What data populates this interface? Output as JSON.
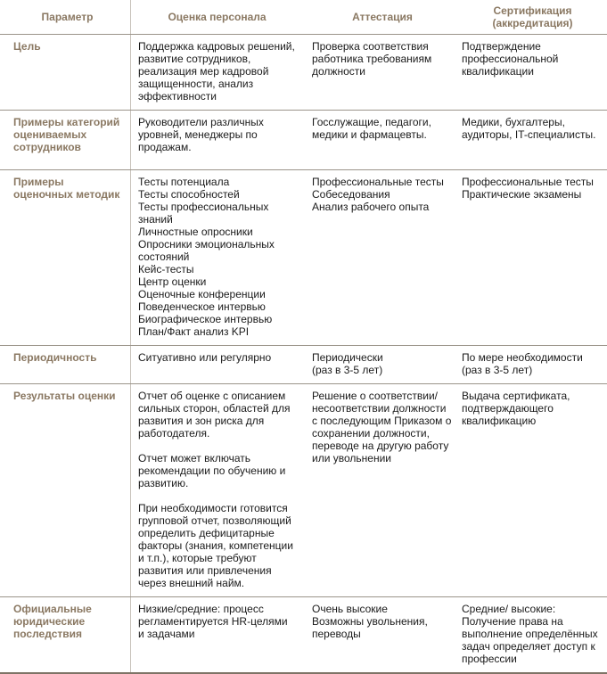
{
  "colors": {
    "label_brown": "#8a7862",
    "body_text": "#1a1a1a",
    "row_separator": "#9b948a",
    "column_divider": "#c8c3bb",
    "background": "#ffffff"
  },
  "table": {
    "headers": [
      "Параметр",
      "Оценка персонала",
      "Аттестация",
      "Сертификация\n(аккредитация)"
    ],
    "rows": [
      {
        "param": "Цель",
        "assessment": "Поддержка кадровых решений, развитие сотрудников, реализация мер кадровой защищенности, анализ эффективности",
        "attestation": "Проверка соответствия работника требованиям должности",
        "certification": "Подтверждение профессиональной квалификации"
      },
      {
        "param": "Примеры категорий оцениваемых сотрудников",
        "assessment": "Руководители различных уровней, менеджеры по продажам.",
        "attestation": "Госслужащие, педагоги, медики и фармацевты.",
        "certification": "Медики, бухгалтеры, аудиторы, IT-специалисты."
      },
      {
        "param": "Примеры оценочных методик",
        "assessment": "Тесты потенциала\nТесты способностей\nТесты профессиональных знаний\nЛичностные опросники\nОпросники эмоциональных состояний\nКейс-тесты\nЦентр оценки\nОценочные конференции\nПоведенческое интервью\nБиографическое интервью\nПлан/Факт анализ KPI",
        "attestation": "Профессиональные тесты\nСобеседования\nАнализ рабочего опыта",
        "certification": "Профессиональные тесты\nПрактические экзамены"
      },
      {
        "param": "Периодичность",
        "assessment": "Ситуативно или регулярно",
        "attestation": "Периодически\n(раз в 3-5 лет)",
        "certification": "По мере необходимости\n(раз в 3-5 лет)"
      },
      {
        "param": "Результаты оценки",
        "assessment": "Отчет об оценке с описанием сильных сторон, областей для развития и зон риска для работодателя.\n\nОтчет может включать рекомендации по обучению и развитию.\n\nПри необходимости готовится групповой отчет, позволяющий определить дефицитарные факторы (знания, компетенции и т.п.), которые требуют развития или привлечения через внешний найм.",
        "attestation": "Решение о соответствии/ несоответствии должности с последующим Приказом о сохранении должности, переводе на другую работу или увольнении",
        "certification": "Выдача сертификата, подтверждающего квалификацию"
      },
      {
        "param": "Официальные юридические последствия",
        "assessment": "Низкие/средние: процесс регламентируется HR-целями и задачами",
        "attestation": "Очень высокие\nВозможны увольнения, переводы",
        "certification": "Средние/ высокие:\nПолучение права на выполнение определённых задач определяет доступ к профессии"
      }
    ]
  }
}
